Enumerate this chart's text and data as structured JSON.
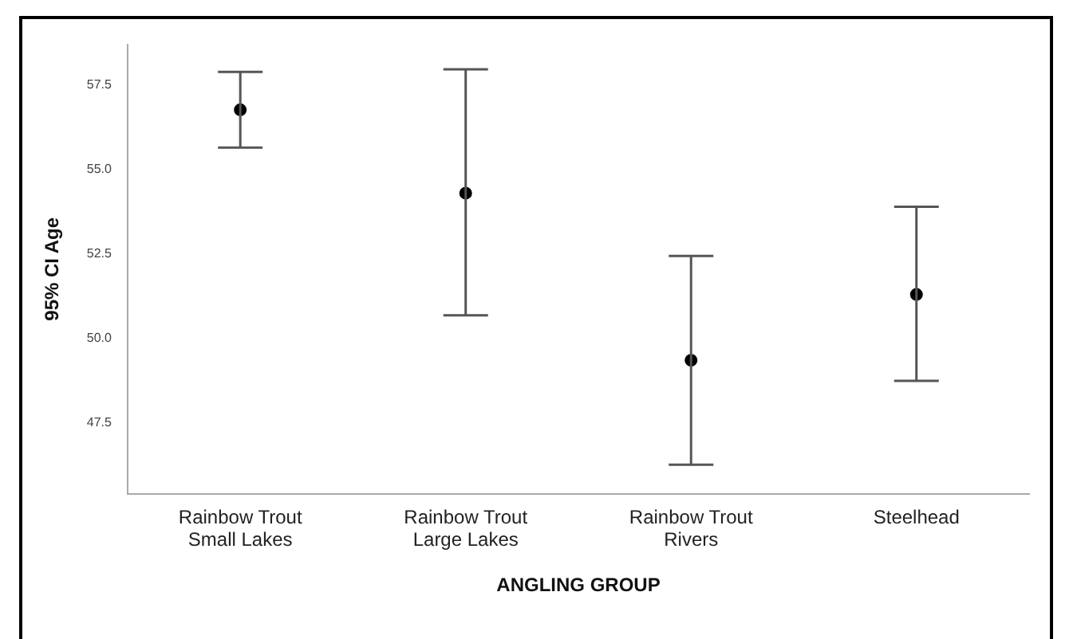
{
  "chart_data": {
    "type": "scatter",
    "xlabel": "ANGLING GROUP",
    "ylabel": "95% CI Age",
    "categories": [
      "Rainbow Trout Small Lakes",
      "Rainbow Trout Large Lakes",
      "Rainbow Trout Rivers",
      "Steelhead"
    ],
    "values": [
      56.77,
      54.3,
      49.35,
      51.3
    ],
    "errors": [
      [
        55.65,
        57.89
      ],
      [
        50.68,
        57.97
      ],
      [
        46.26,
        52.44
      ],
      [
        48.74,
        53.9
      ]
    ],
    "color": "#000000",
    "marker": "circle",
    "ylim": [
      45.4,
      58.7
    ],
    "yticks": [
      {
        "value": 47.5,
        "label": "47.5"
      },
      {
        "value": 50,
        "label": "50.0"
      },
      {
        "value": 52.5,
        "label": "52.5"
      },
      {
        "value": 55,
        "label": "55.0"
      },
      {
        "value": 57.5,
        "label": "57.5"
      }
    ],
    "grid": false,
    "legend": false
  }
}
